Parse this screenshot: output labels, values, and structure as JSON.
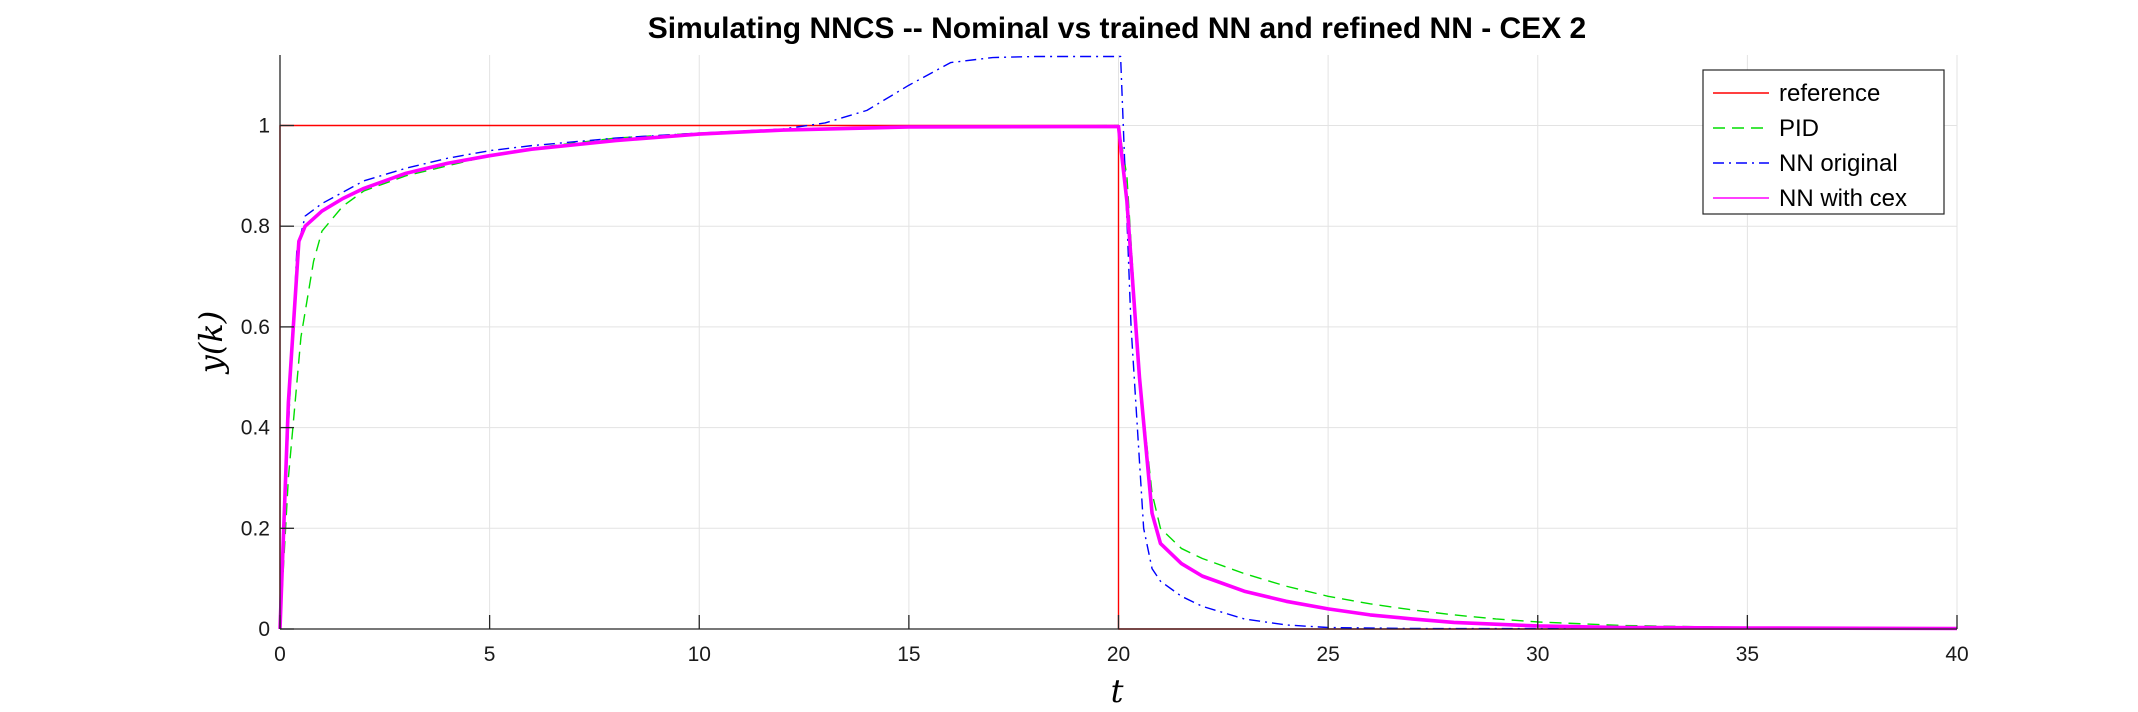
{
  "chart_data": {
    "type": "line",
    "title": "Simulating NNCS -- Nominal vs trained NN and refined NN - CEX 2",
    "xlabel": "t",
    "ylabel": "y(k)",
    "xlim": [
      0,
      40
    ],
    "ylim": [
      0,
      1.14
    ],
    "xticks": [
      0,
      5,
      10,
      15,
      20,
      25,
      30,
      35,
      40
    ],
    "yticks": [
      0,
      0.2,
      0.4,
      0.6,
      0.8,
      1
    ],
    "xtick_labels": [
      "0",
      "5",
      "10",
      "15",
      "20",
      "25",
      "30",
      "35",
      "40"
    ],
    "ytick_labels": [
      "0",
      "0.2",
      "0.4",
      "0.6",
      "0.8",
      "1"
    ],
    "grid": true,
    "legend_position": "top-right",
    "series": [
      {
        "name": "reference",
        "color": "#ff0000",
        "style": "solid",
        "points": [
          [
            0,
            0
          ],
          [
            0,
            1
          ],
          [
            20,
            1
          ],
          [
            20,
            0
          ],
          [
            40,
            0
          ]
        ]
      },
      {
        "name": "PID",
        "color": "#00dd00",
        "style": "dashed",
        "points": [
          [
            0,
            0
          ],
          [
            0.2,
            0.3
          ],
          [
            0.5,
            0.58
          ],
          [
            0.8,
            0.73
          ],
          [
            1,
            0.79
          ],
          [
            1.5,
            0.84
          ],
          [
            2,
            0.87
          ],
          [
            3,
            0.9
          ],
          [
            4,
            0.92
          ],
          [
            5,
            0.94
          ],
          [
            6,
            0.955
          ],
          [
            8,
            0.975
          ],
          [
            10,
            0.985
          ],
          [
            12,
            0.992
          ],
          [
            15,
            0.997
          ],
          [
            20,
            1.0
          ],
          [
            20.2,
            0.9
          ],
          [
            20.5,
            0.5
          ],
          [
            20.8,
            0.27
          ],
          [
            21,
            0.2
          ],
          [
            21.5,
            0.16
          ],
          [
            22,
            0.14
          ],
          [
            23,
            0.11
          ],
          [
            24,
            0.085
          ],
          [
            25,
            0.065
          ],
          [
            26,
            0.05
          ],
          [
            27,
            0.038
          ],
          [
            28,
            0.028
          ],
          [
            29,
            0.02
          ],
          [
            30,
            0.014
          ],
          [
            32,
            0.007
          ],
          [
            35,
            0.003
          ],
          [
            40,
            0.001
          ]
        ]
      },
      {
        "name": "NN original",
        "color": "#0000ff",
        "style": "dashdot",
        "points": [
          [
            0,
            0
          ],
          [
            0.2,
            0.4
          ],
          [
            0.4,
            0.75
          ],
          [
            0.6,
            0.82
          ],
          [
            1,
            0.845
          ],
          [
            2,
            0.89
          ],
          [
            3,
            0.915
          ],
          [
            4,
            0.935
          ],
          [
            5,
            0.95
          ],
          [
            6,
            0.96
          ],
          [
            8,
            0.975
          ],
          [
            10,
            0.985
          ],
          [
            12,
            0.993
          ],
          [
            13,
            1.005
          ],
          [
            14,
            1.03
          ],
          [
            15,
            1.08
          ],
          [
            16,
            1.125
          ],
          [
            17,
            1.135
          ],
          [
            18,
            1.137
          ],
          [
            20,
            1.137
          ],
          [
            20.05,
            1.137
          ],
          [
            20.3,
            0.6
          ],
          [
            20.6,
            0.2
          ],
          [
            20.8,
            0.12
          ],
          [
            21,
            0.095
          ],
          [
            21.5,
            0.065
          ],
          [
            22,
            0.045
          ],
          [
            23,
            0.02
          ],
          [
            24,
            0.008
          ],
          [
            25,
            0.003
          ],
          [
            27,
            0.001
          ],
          [
            40,
            0.0
          ]
        ]
      },
      {
        "name": "NN with cex",
        "color": "#ff00ff",
        "style": "solid-marker",
        "points": [
          [
            0,
            0
          ],
          [
            0.2,
            0.45
          ],
          [
            0.45,
            0.77
          ],
          [
            0.6,
            0.8
          ],
          [
            1,
            0.83
          ],
          [
            1.5,
            0.855
          ],
          [
            2,
            0.875
          ],
          [
            3,
            0.905
          ],
          [
            4,
            0.925
          ],
          [
            5,
            0.94
          ],
          [
            6,
            0.953
          ],
          [
            8,
            0.97
          ],
          [
            10,
            0.983
          ],
          [
            12,
            0.991
          ],
          [
            15,
            0.997
          ],
          [
            20,
            0.998
          ],
          [
            20.2,
            0.85
          ],
          [
            20.5,
            0.5
          ],
          [
            20.8,
            0.23
          ],
          [
            21,
            0.17
          ],
          [
            21.5,
            0.13
          ],
          [
            22,
            0.105
          ],
          [
            23,
            0.075
          ],
          [
            24,
            0.055
          ],
          [
            25,
            0.04
          ],
          [
            26,
            0.028
          ],
          [
            27,
            0.02
          ],
          [
            28,
            0.013
          ],
          [
            30,
            0.006
          ],
          [
            32,
            0.003
          ],
          [
            35,
            0.002
          ],
          [
            40,
            0.001
          ]
        ]
      }
    ]
  }
}
